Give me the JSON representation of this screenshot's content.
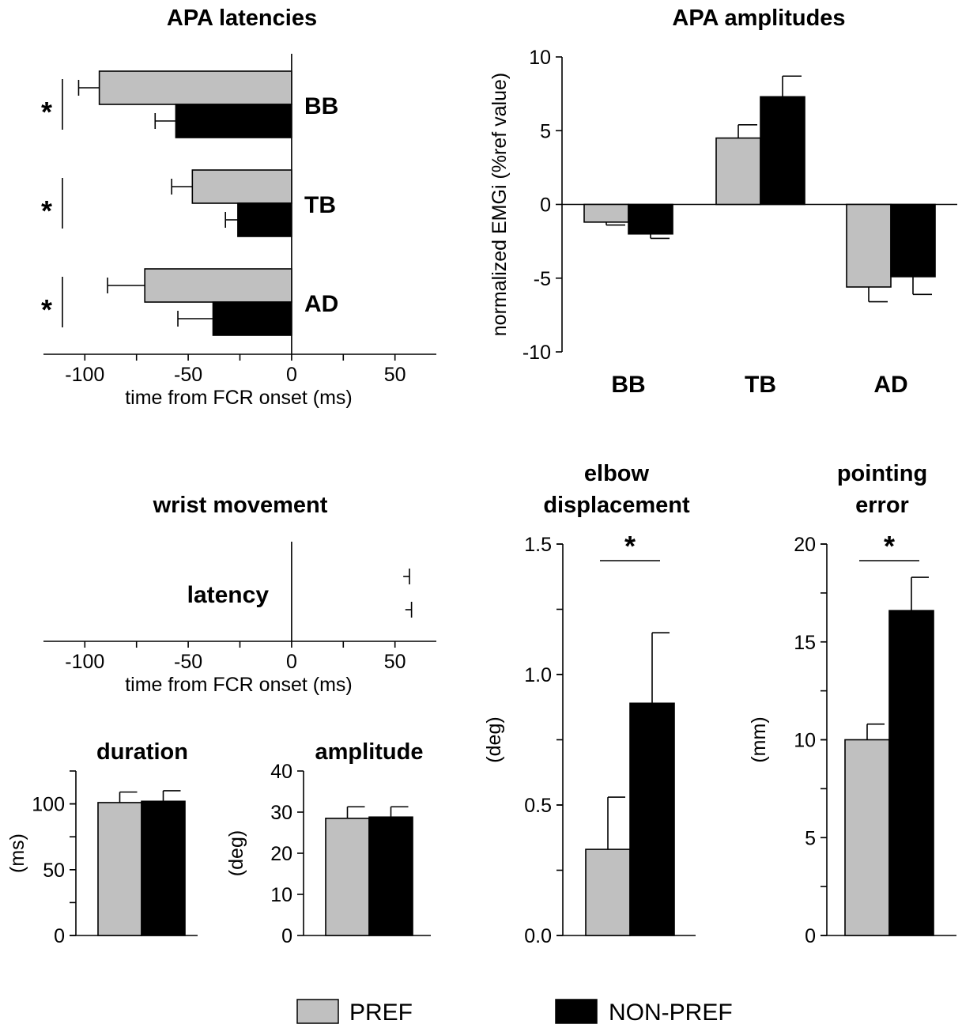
{
  "colors": {
    "pref": "#c0c0c0",
    "nonpref": "#000000",
    "axis": "#000000"
  },
  "legend": {
    "pref_label": "PREF",
    "nonpref_label": "NON-PREF"
  },
  "chart_data": [
    {
      "id": "apa-latencies",
      "type": "bar",
      "orientation": "horizontal",
      "title": "APA latencies",
      "xlabel": "time from FCR onset (ms)",
      "xlim": [
        -120,
        70
      ],
      "xticks": [
        -100,
        -50,
        0,
        50
      ],
      "xtick_labels": [
        "-100",
        "-50",
        "0",
        "50"
      ],
      "categories": [
        "BB",
        "TB",
        "AD"
      ],
      "series": [
        {
          "name": "PREF",
          "values": [
            -93,
            -48,
            -71
          ],
          "errors": [
            10,
            10,
            18
          ]
        },
        {
          "name": "NON-PREF",
          "values": [
            -56,
            -26,
            -38
          ],
          "errors": [
            10,
            6,
            17
          ]
        }
      ],
      "significance": [
        {
          "category": "BB",
          "label": "*"
        },
        {
          "category": "TB",
          "label": "*"
        },
        {
          "category": "AD",
          "label": "*"
        }
      ]
    },
    {
      "id": "apa-amplitudes",
      "type": "bar",
      "title": "APA amplitudes",
      "ylabel": "normalized EMGi (%ref value)",
      "ylim": [
        -10,
        10
      ],
      "yticks": [
        10,
        5,
        0,
        -5,
        -10
      ],
      "ytick_labels": [
        "10",
        "5",
        "0",
        "-5",
        "-10"
      ],
      "categories": [
        "BB",
        "TB",
        "AD"
      ],
      "series": [
        {
          "name": "PREF",
          "values": [
            -1.2,
            4.5,
            -5.6
          ],
          "errors": [
            0.2,
            0.9,
            1.0
          ]
        },
        {
          "name": "NON-PREF",
          "values": [
            -2.0,
            7.3,
            -4.9
          ],
          "errors": [
            0.3,
            1.4,
            1.2
          ]
        }
      ]
    },
    {
      "id": "wrist-latency",
      "type": "bar",
      "orientation": "horizontal",
      "title": "wrist movement",
      "xlabel": "time from FCR onset (ms)",
      "xlim": [
        -120,
        70
      ],
      "xticks": [
        -100,
        -50,
        0,
        50
      ],
      "xtick_labels": [
        "-100",
        "-50",
        "0",
        "50"
      ],
      "categories": [
        "latency"
      ],
      "series": [
        {
          "name": "PREF",
          "values": [
            54
          ],
          "errors": [
            3
          ]
        },
        {
          "name": "NON-PREF",
          "values": [
            55
          ],
          "errors": [
            3
          ]
        }
      ]
    },
    {
      "id": "wrist-duration",
      "type": "bar",
      "title": "duration",
      "ylabel": "(ms)",
      "ylim": [
        0,
        125
      ],
      "yticks": [
        0,
        50,
        100
      ],
      "ytick_labels": [
        "0",
        "50",
        "100"
      ],
      "categories": [
        ""
      ],
      "series": [
        {
          "name": "PREF",
          "values": [
            101
          ],
          "errors": [
            8
          ]
        },
        {
          "name": "NON-PREF",
          "values": [
            102
          ],
          "errors": [
            8
          ]
        }
      ]
    },
    {
      "id": "wrist-amplitude",
      "type": "bar",
      "title": "amplitude",
      "ylabel": "(deg)",
      "ylim": [
        0,
        40
      ],
      "yticks": [
        0,
        10,
        20,
        30,
        40
      ],
      "ytick_labels": [
        "0",
        "10",
        "20",
        "30",
        "40"
      ],
      "categories": [
        ""
      ],
      "series": [
        {
          "name": "PREF",
          "values": [
            28.5
          ],
          "errors": [
            2.8
          ]
        },
        {
          "name": "NON-PREF",
          "values": [
            28.8
          ],
          "errors": [
            2.5
          ]
        }
      ]
    },
    {
      "id": "elbow-displacement",
      "type": "bar",
      "title_lines": [
        "elbow",
        "displacement"
      ],
      "ylabel": "(deg)",
      "ylim": [
        0,
        1.5
      ],
      "yticks": [
        0,
        0.5,
        1.0,
        1.5
      ],
      "ytick_labels": [
        "0.0",
        "0.5",
        "1.0",
        "1.5"
      ],
      "categories": [
        ""
      ],
      "series": [
        {
          "name": "PREF",
          "values": [
            0.33
          ],
          "errors": [
            0.2
          ]
        },
        {
          "name": "NON-PREF",
          "values": [
            0.89
          ],
          "errors": [
            0.27
          ]
        }
      ],
      "significance": [
        {
          "label": "*"
        }
      ]
    },
    {
      "id": "pointing-error",
      "type": "bar",
      "title_lines": [
        "pointing",
        "error"
      ],
      "ylabel": "(mm)",
      "ylim": [
        0,
        20
      ],
      "yticks": [
        0,
        5,
        10,
        15,
        20
      ],
      "ytick_labels": [
        "0",
        "5",
        "10",
        "15",
        "20"
      ],
      "categories": [
        ""
      ],
      "series": [
        {
          "name": "PREF",
          "values": [
            10.0
          ],
          "errors": [
            0.8
          ]
        },
        {
          "name": "NON-PREF",
          "values": [
            16.6
          ],
          "errors": [
            1.7
          ]
        }
      ],
      "significance": [
        {
          "label": "*"
        }
      ]
    }
  ]
}
